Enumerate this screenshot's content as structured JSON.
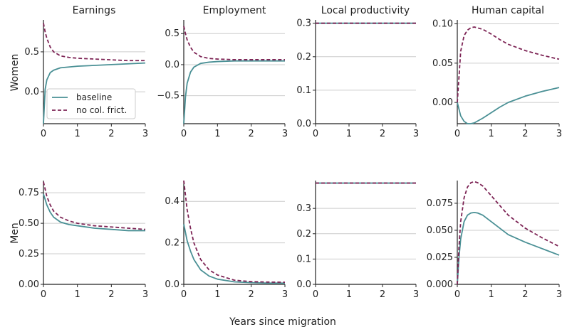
{
  "figure": {
    "xlabel": "Years since migration",
    "columns": [
      "Earnings",
      "Employment",
      "Local productivity",
      "Human capital"
    ],
    "rows": [
      "Women",
      "Men"
    ],
    "colors": {
      "baseline": "#4a9095",
      "no_col_frict": "#7d2455"
    }
  },
  "legend": {
    "baseline": "baseline",
    "no_col_frict": "no col. frict."
  },
  "chart_data": [
    {
      "type": "line",
      "row": "Women",
      "title": "Earnings",
      "ylabel": "Women",
      "xlim": [
        0,
        3
      ],
      "ylim": [
        -0.4,
        0.9
      ],
      "xticks": [
        0,
        1,
        2,
        3
      ],
      "xtick_labels": [
        "0",
        "1",
        "2",
        "3"
      ],
      "yticks": [
        0,
        0.5
      ],
      "ytick_labels": [
        "0.0",
        "0.5"
      ],
      "legend": true,
      "x": [
        0,
        0.05,
        0.1,
        0.2,
        0.3,
        0.5,
        0.75,
        1,
        1.5,
        2,
        2.5,
        3
      ],
      "series": [
        {
          "name": "baseline",
          "key": "baseline",
          "style": "solid",
          "values": [
            -0.4,
            0.03,
            0.15,
            0.24,
            0.27,
            0.3,
            0.31,
            0.32,
            0.33,
            0.34,
            0.35,
            0.36
          ]
        },
        {
          "name": "no col. frict.",
          "key": "no_col_frict",
          "style": "dashed",
          "values": [
            0.86,
            0.75,
            0.67,
            0.56,
            0.5,
            0.45,
            0.43,
            0.42,
            0.41,
            0.4,
            0.39,
            0.39
          ]
        }
      ]
    },
    {
      "type": "line",
      "row": "Women",
      "title": "Employment",
      "xlim": [
        0,
        3
      ],
      "ylim": [
        -0.95,
        0.72
      ],
      "xticks": [
        0,
        1,
        2,
        3
      ],
      "xtick_labels": [
        "0",
        "1",
        "2",
        "3"
      ],
      "yticks": [
        -0.5,
        0,
        0.5
      ],
      "ytick_labels": [
        "−0.5",
        "0.0",
        "0.5"
      ],
      "x": [
        0,
        0.05,
        0.1,
        0.2,
        0.3,
        0.5,
        0.75,
        1,
        1.5,
        2,
        2.5,
        3
      ],
      "series": [
        {
          "name": "baseline",
          "key": "baseline",
          "style": "solid",
          "values": [
            -0.95,
            -0.52,
            -0.3,
            -0.12,
            -0.04,
            0.02,
            0.04,
            0.05,
            0.06,
            0.06,
            0.06,
            0.06
          ]
        },
        {
          "name": "no col. frict.",
          "key": "no_col_frict",
          "style": "dashed",
          "values": [
            0.62,
            0.5,
            0.4,
            0.28,
            0.2,
            0.13,
            0.1,
            0.09,
            0.08,
            0.08,
            0.08,
            0.08
          ]
        }
      ]
    },
    {
      "type": "line",
      "row": "Women",
      "title": "Local productivity",
      "xlim": [
        0,
        3
      ],
      "ylim": [
        0,
        0.31
      ],
      "xticks": [
        0,
        1,
        2,
        3
      ],
      "xtick_labels": [
        "0",
        "1",
        "2",
        "3"
      ],
      "yticks": [
        0,
        0.1,
        0.2,
        0.3
      ],
      "ytick_labels": [
        "0.0",
        "0.1",
        "0.2",
        "0.3"
      ],
      "x": [
        0,
        3
      ],
      "series": [
        {
          "name": "baseline",
          "key": "baseline",
          "style": "solid",
          "values": [
            0.3,
            0.3
          ]
        },
        {
          "name": "no col. frict.",
          "key": "no_col_frict",
          "style": "dashed",
          "values": [
            0.3,
            0.3
          ]
        }
      ]
    },
    {
      "type": "line",
      "row": "Women",
      "title": "Human capital",
      "xlim": [
        0,
        3
      ],
      "ylim": [
        -0.027,
        0.105
      ],
      "xticks": [
        0,
        1,
        2,
        3
      ],
      "xtick_labels": [
        "0",
        "1",
        "2",
        "3"
      ],
      "yticks": [
        0,
        0.05,
        0.1
      ],
      "ytick_labels": [
        "0.00",
        "0.05",
        "0.10"
      ],
      "x": [
        0,
        0.1,
        0.2,
        0.3,
        0.4,
        0.5,
        0.75,
        1,
        1.25,
        1.5,
        2,
        2.5,
        3
      ],
      "series": [
        {
          "name": "baseline",
          "key": "baseline",
          "style": "solid",
          "values": [
            0.0,
            -0.017,
            -0.024,
            -0.027,
            -0.027,
            -0.026,
            -0.02,
            -0.013,
            -0.006,
            0.0,
            0.008,
            0.014,
            0.019
          ]
        },
        {
          "name": "no col. frict.",
          "key": "no_col_frict",
          "style": "dashed",
          "values": [
            0.0,
            0.065,
            0.085,
            0.092,
            0.095,
            0.096,
            0.093,
            0.087,
            0.08,
            0.074,
            0.066,
            0.06,
            0.055
          ]
        }
      ]
    },
    {
      "type": "line",
      "row": "Men",
      "title": "Earnings",
      "ylabel": "Men",
      "xlim": [
        0,
        3
      ],
      "ylim": [
        0,
        0.85
      ],
      "xticks": [
        0,
        1,
        2,
        3
      ],
      "xtick_labels": [
        "0",
        "1",
        "2",
        "3"
      ],
      "yticks": [
        0,
        0.25,
        0.5,
        0.75
      ],
      "ytick_labels": [
        "0.00",
        "0.25",
        "0.50",
        "0.75"
      ],
      "x": [
        0,
        0.1,
        0.2,
        0.3,
        0.5,
        0.75,
        1,
        1.5,
        2,
        2.5,
        3
      ],
      "series": [
        {
          "name": "baseline",
          "key": "baseline",
          "style": "solid",
          "values": [
            0.74,
            0.65,
            0.59,
            0.55,
            0.51,
            0.49,
            0.48,
            0.46,
            0.45,
            0.44,
            0.44
          ]
        },
        {
          "name": "no col. frict.",
          "key": "no_col_frict",
          "style": "dashed",
          "values": [
            0.84,
            0.72,
            0.65,
            0.6,
            0.55,
            0.52,
            0.5,
            0.48,
            0.47,
            0.46,
            0.45
          ]
        }
      ]
    },
    {
      "type": "line",
      "row": "Men",
      "title": "Employment",
      "xlim": [
        0,
        3
      ],
      "ylim": [
        0,
        0.5
      ],
      "xticks": [
        0,
        1,
        2,
        3
      ],
      "xtick_labels": [
        "0",
        "1",
        "2",
        "3"
      ],
      "yticks": [
        0,
        0.2,
        0.4
      ],
      "ytick_labels": [
        "0.0",
        "0.2",
        "0.4"
      ],
      "x": [
        0,
        0.1,
        0.2,
        0.3,
        0.5,
        0.75,
        1,
        1.5,
        2,
        2.5,
        3
      ],
      "series": [
        {
          "name": "baseline",
          "key": "baseline",
          "style": "solid",
          "values": [
            0.29,
            0.21,
            0.16,
            0.12,
            0.07,
            0.04,
            0.025,
            0.012,
            0.008,
            0.006,
            0.006
          ]
        },
        {
          "name": "no col. frict.",
          "key": "no_col_frict",
          "style": "dashed",
          "values": [
            0.5,
            0.36,
            0.27,
            0.2,
            0.12,
            0.07,
            0.045,
            0.02,
            0.013,
            0.011,
            0.01
          ]
        }
      ]
    },
    {
      "type": "line",
      "row": "Men",
      "title": "Local productivity",
      "xlim": [
        0,
        3
      ],
      "ylim": [
        0,
        0.41
      ],
      "xticks": [
        0,
        1,
        2,
        3
      ],
      "xtick_labels": [
        "0",
        "1",
        "2",
        "3"
      ],
      "yticks": [
        0,
        0.1,
        0.2,
        0.3
      ],
      "ytick_labels": [
        "0.0",
        "0.1",
        "0.2",
        "0.3"
      ],
      "x": [
        0,
        3
      ],
      "series": [
        {
          "name": "baseline",
          "key": "baseline",
          "style": "solid",
          "values": [
            0.4,
            0.4
          ]
        },
        {
          "name": "no col. frict.",
          "key": "no_col_frict",
          "style": "dashed",
          "values": [
            0.4,
            0.4
          ]
        }
      ]
    },
    {
      "type": "line",
      "row": "Men",
      "title": "Human capital",
      "xlim": [
        0,
        3
      ],
      "ylim": [
        0,
        0.096
      ],
      "xticks": [
        0,
        1,
        2,
        3
      ],
      "xtick_labels": [
        "0",
        "1",
        "2",
        "3"
      ],
      "yticks": [
        0,
        0.025,
        0.05,
        0.075
      ],
      "ytick_labels": [
        "0.000",
        "0.025",
        "0.050",
        "0.075"
      ],
      "x": [
        0,
        0.05,
        0.1,
        0.2,
        0.3,
        0.4,
        0.5,
        0.6,
        0.75,
        1,
        1.25,
        1.5,
        2,
        2.5,
        3
      ],
      "series": [
        {
          "name": "baseline",
          "key": "baseline",
          "style": "solid",
          "values": [
            0.0,
            0.025,
            0.042,
            0.058,
            0.064,
            0.066,
            0.0665,
            0.066,
            0.064,
            0.058,
            0.052,
            0.046,
            0.039,
            0.033,
            0.027
          ]
        },
        {
          "name": "no col. frict.",
          "key": "no_col_frict",
          "style": "dashed",
          "values": [
            0.0,
            0.035,
            0.058,
            0.08,
            0.09,
            0.094,
            0.095,
            0.094,
            0.091,
            0.082,
            0.073,
            0.064,
            0.052,
            0.043,
            0.035
          ]
        }
      ]
    }
  ]
}
